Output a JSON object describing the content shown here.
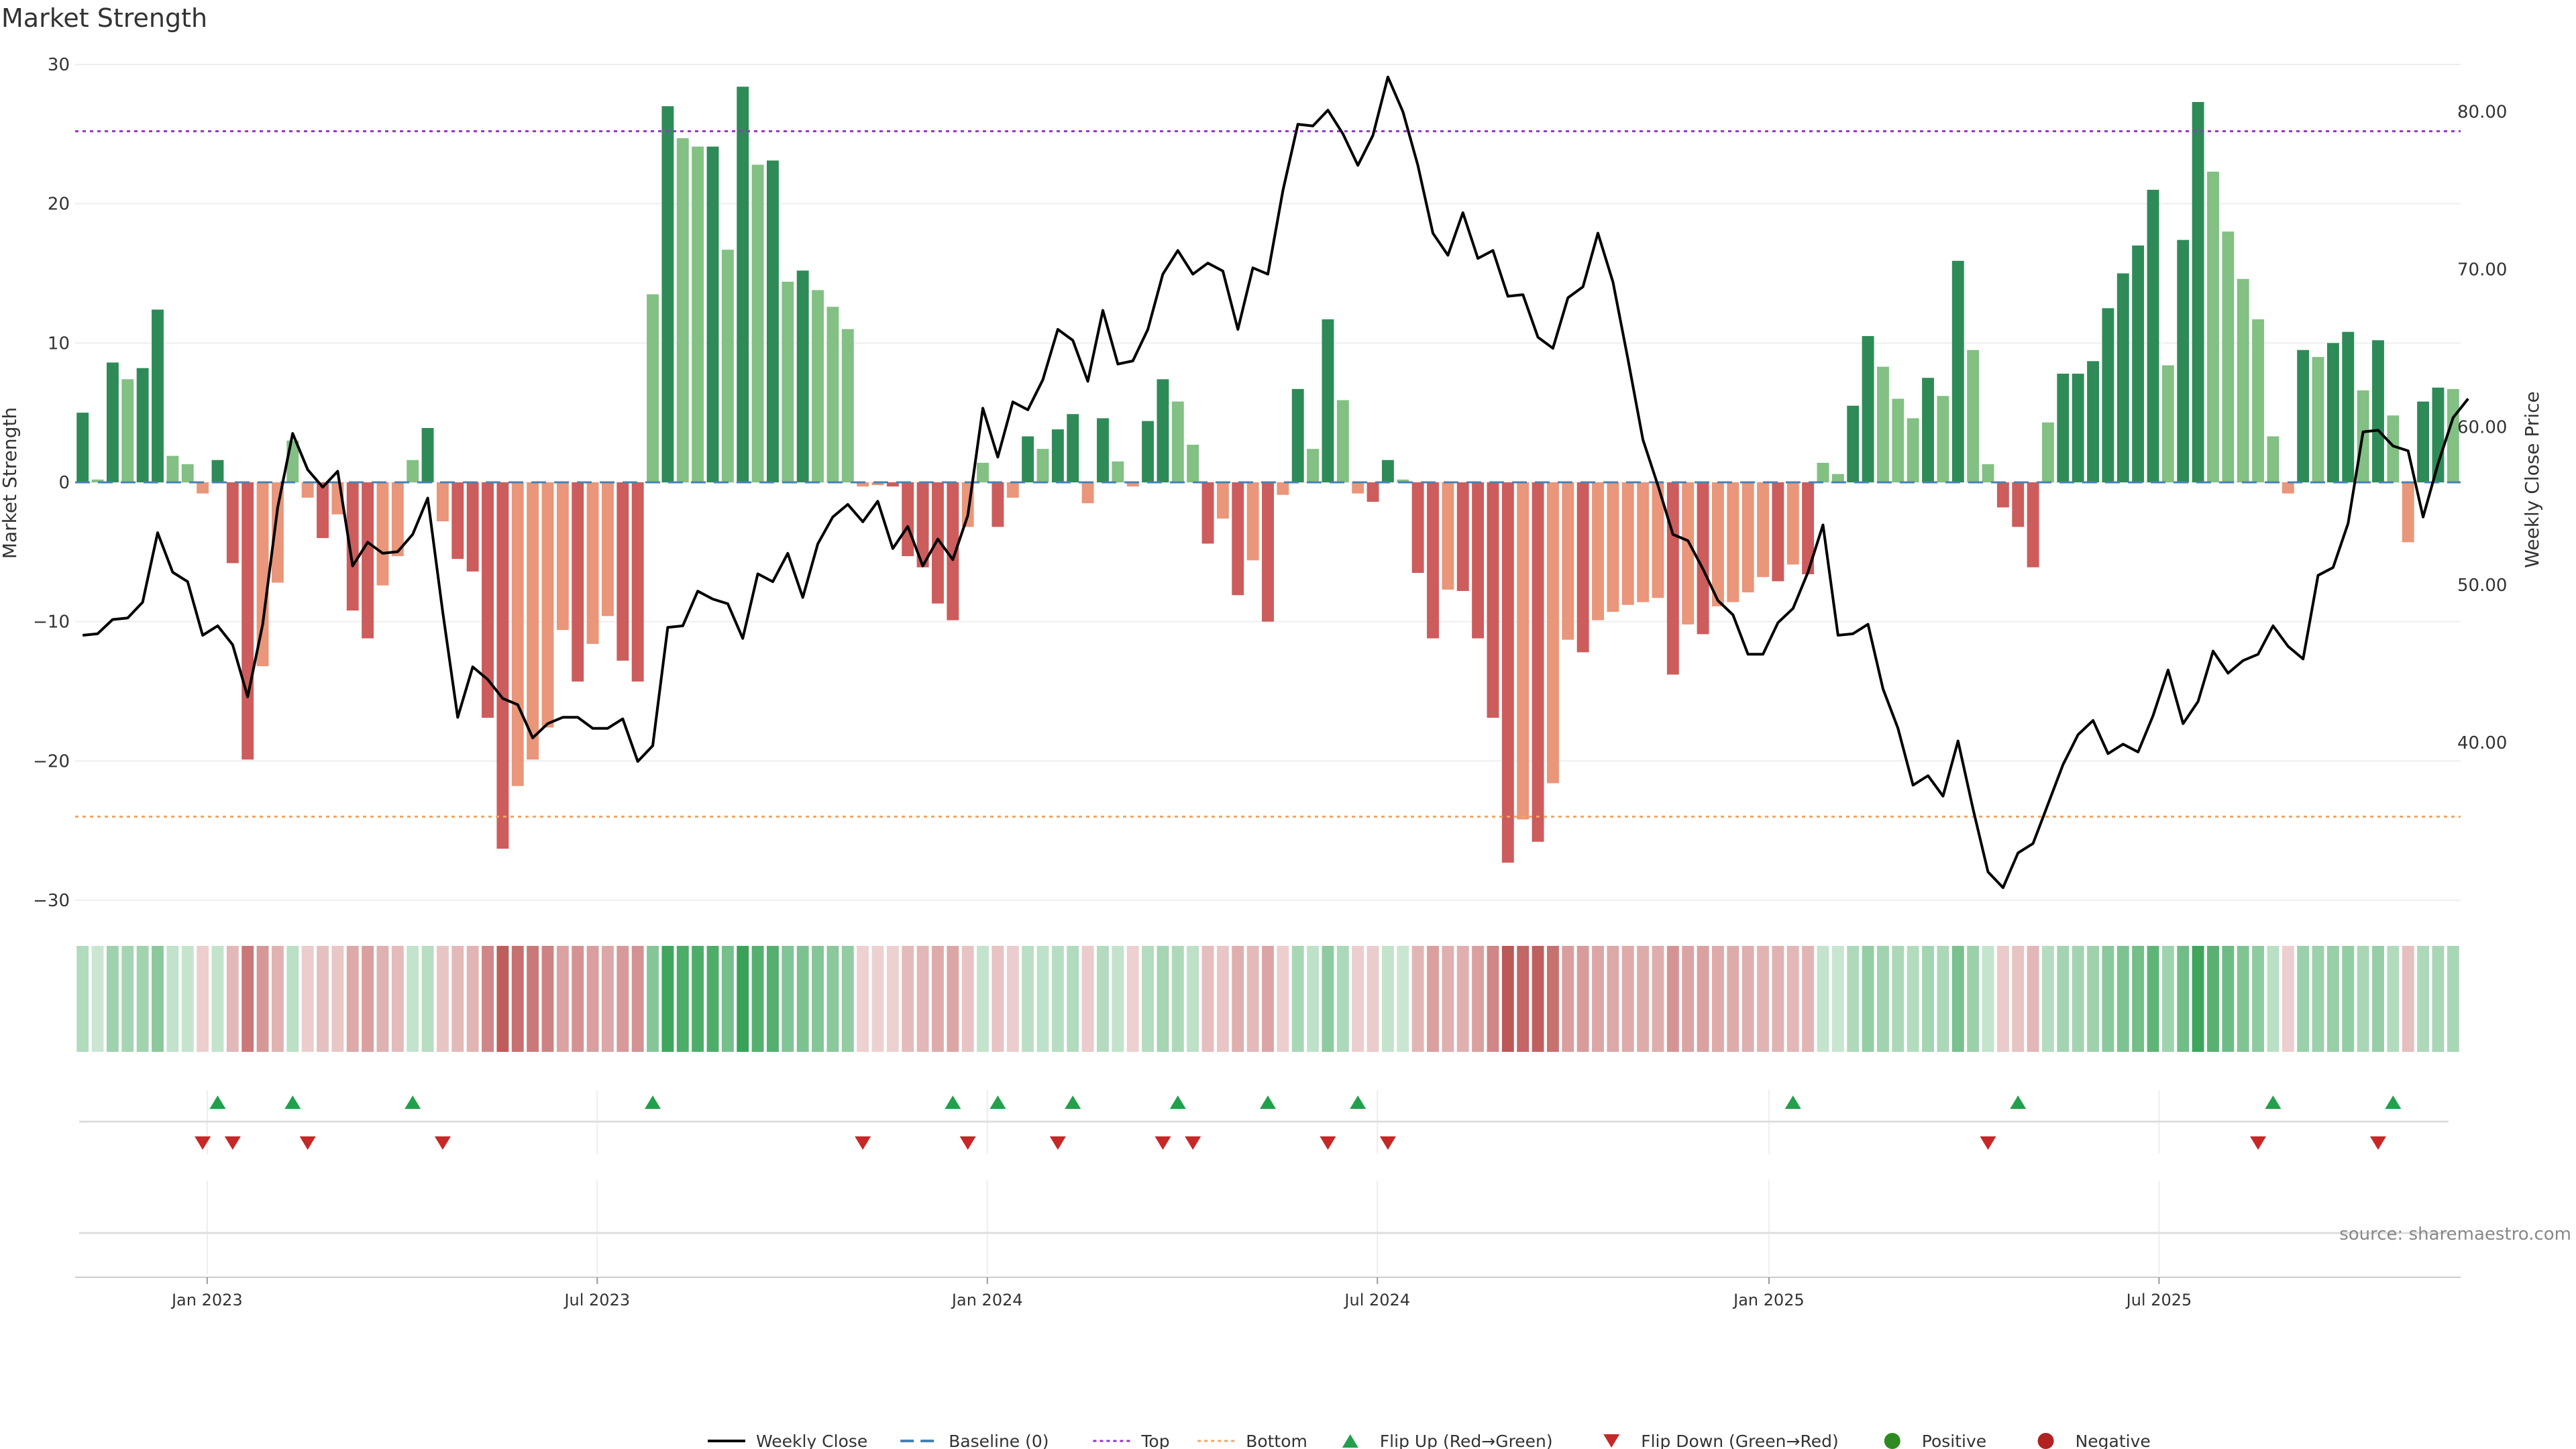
{
  "chart_data": {
    "type": "bar",
    "title": "Market Strength",
    "ylabel": "Market Strength",
    "y2label": "Weekly Close Price",
    "ylim": [
      -30,
      30
    ],
    "y2lim": [
      30,
      83
    ],
    "yticks": [
      30,
      20,
      10,
      0,
      -10,
      -20,
      -30
    ],
    "y2ticks": [
      "80.00",
      "70.00",
      "60.00",
      "50.00",
      "40.00"
    ],
    "xticks": [
      "Jan 2023",
      "Jul 2023",
      "Jan 2024",
      "Jul 2024",
      "Jan 2025",
      "Jul 2025"
    ],
    "top_line": 25.2,
    "bottom_line": -24,
    "source": "source: sharemaestro.com",
    "legend_position": "bottom-center",
    "legend": [
      "Weekly Close",
      "Baseline (0)",
      "Top",
      "Bottom",
      "Flip Up (Red→Green)",
      "Flip Down (Green→Red)",
      "Positive",
      "Negative"
    ],
    "strength": [
      5.0,
      0.2,
      8.6,
      7.4,
      8.2,
      12.4,
      1.9,
      1.3,
      -0.8,
      1.6,
      -5.8,
      -19.9,
      -13.2,
      -7.2,
      3.0,
      -1.1,
      -4.0,
      -2.3,
      -9.2,
      -11.2,
      -7.4,
      -5.3,
      1.6,
      3.9,
      -2.8,
      -5.5,
      -6.4,
      -16.9,
      -26.3,
      -21.8,
      -19.9,
      -17.6,
      -10.6,
      -14.3,
      -11.6,
      -9.6,
      -12.8,
      -14.3,
      13.5,
      27.0,
      24.7,
      24.1,
      24.1,
      16.7,
      28.4,
      22.8,
      23.1,
      14.4,
      15.2,
      13.8,
      12.6,
      11.0,
      -0.3,
      -0.2,
      -0.3,
      -5.3,
      -6.1,
      -8.7,
      -9.9,
      -3.2,
      1.4,
      -3.2,
      -1.1,
      3.3,
      2.4,
      3.8,
      4.9,
      -1.5,
      4.6,
      1.5,
      -0.3,
      4.4,
      7.4,
      5.8,
      2.7,
      -4.4,
      -2.6,
      -8.1,
      -5.6,
      -10.0,
      -0.9,
      6.7,
      2.4,
      11.7,
      5.9,
      -0.8,
      -1.4,
      1.6,
      0.2,
      -6.5,
      -11.2,
      -7.7,
      -7.8,
      -11.2,
      -16.9,
      -27.3,
      -24.2,
      -25.8,
      -21.6,
      -11.3,
      -12.2,
      -9.9,
      -9.3,
      -8.8,
      -8.6,
      -8.3,
      -13.8,
      -10.2,
      -10.9,
      -8.9,
      -8.6,
      -7.9,
      -6.8,
      -7.1,
      -5.9,
      -6.6,
      1.4,
      0.6,
      5.5,
      10.5,
      8.3,
      6.0,
      4.6,
      7.5,
      6.2,
      15.9,
      9.5,
      1.3,
      -1.8,
      -3.2,
      -6.1,
      4.3,
      7.8,
      7.8,
      8.7,
      12.5,
      15.0,
      17.0,
      21.0,
      8.4,
      17.4,
      27.3,
      22.3,
      18.0,
      14.6,
      11.7,
      3.3,
      -0.8,
      9.5,
      9.0,
      10.0,
      10.8,
      6.6,
      10.2,
      4.8,
      -4.3,
      5.8,
      6.8,
      6.7
    ],
    "close": [
      46.8,
      46.9,
      47.8,
      47.9,
      48.9,
      53.3,
      50.8,
      50.2,
      46.8,
      47.4,
      46.2,
      42.9,
      47.5,
      54.9,
      59.6,
      57.3,
      56.2,
      57.2,
      51.2,
      52.7,
      52.0,
      52.1,
      53.2,
      55.5,
      48.3,
      41.6,
      44.8,
      44.0,
      42.8,
      42.4,
      40.3,
      41.2,
      41.6,
      41.6,
      40.9,
      40.9,
      41.5,
      38.8,
      39.8,
      47.3,
      47.4,
      49.6,
      49.1,
      48.8,
      46.6,
      50.7,
      50.2,
      52.0,
      49.2,
      52.6,
      54.3,
      55.1,
      54.0,
      55.3,
      52.3,
      53.7,
      51.2,
      52.9,
      51.6,
      54.4,
      61.2,
      58.1,
      61.6,
      61.1,
      63.0,
      66.2,
      65.5,
      62.9,
      67.4,
      64.0,
      64.2,
      66.2,
      69.7,
      71.2,
      69.7,
      70.4,
      69.9,
      66.2,
      70.1,
      69.7,
      75.0,
      79.2,
      79.1,
      80.1,
      78.6,
      76.6,
      78.5,
      82.2,
      80.0,
      76.6,
      72.3,
      70.9,
      73.6,
      70.7,
      71.2,
      68.3,
      68.4,
      65.7,
      65.0,
      68.2,
      68.9,
      72.3,
      69.2,
      64.3,
      59.2,
      56.3,
      53.2,
      52.8,
      51.0,
      49.0,
      48.1,
      45.6,
      45.6,
      47.6,
      48.5,
      50.8,
      53.8,
      46.8,
      46.9,
      47.5,
      43.4,
      40.9,
      37.3,
      37.9,
      36.6,
      40.1,
      35.8,
      31.8,
      30.8,
      33.0,
      33.6,
      36.1,
      38.6,
      40.5,
      41.4,
      39.3,
      39.9,
      39.4,
      41.7,
      44.6,
      41.2,
      42.6,
      45.8,
      44.4,
      45.2,
      45.6,
      47.4,
      46.1,
      45.3,
      50.6,
      51.1,
      53.9,
      59.7,
      59.8,
      58.8,
      58.5,
      54.3,
      57.7,
      60.6,
      61.8
    ],
    "flip_up_weeks": [
      9,
      14,
      22,
      38,
      58,
      61,
      66,
      73,
      79,
      85,
      114,
      129,
      146,
      154
    ],
    "flip_down_weeks": [
      8,
      10,
      15,
      24,
      52,
      59,
      65,
      72,
      74,
      83,
      87,
      127,
      145,
      153
    ]
  },
  "colors": {
    "positive_strong": "#2e8b57",
    "positive_light": "#82c083",
    "negative_strong": "#cd5c5c",
    "negative_light": "#e9967a",
    "close_line": "#000000",
    "baseline": "#4682b4",
    "top_line": "#9932cc",
    "bottom_line": "#f4a460",
    "flip_up": "#22a04b",
    "flip_down": "#c62828",
    "positive_dot": "#2e8b22",
    "negative_dot": "#b22222"
  }
}
